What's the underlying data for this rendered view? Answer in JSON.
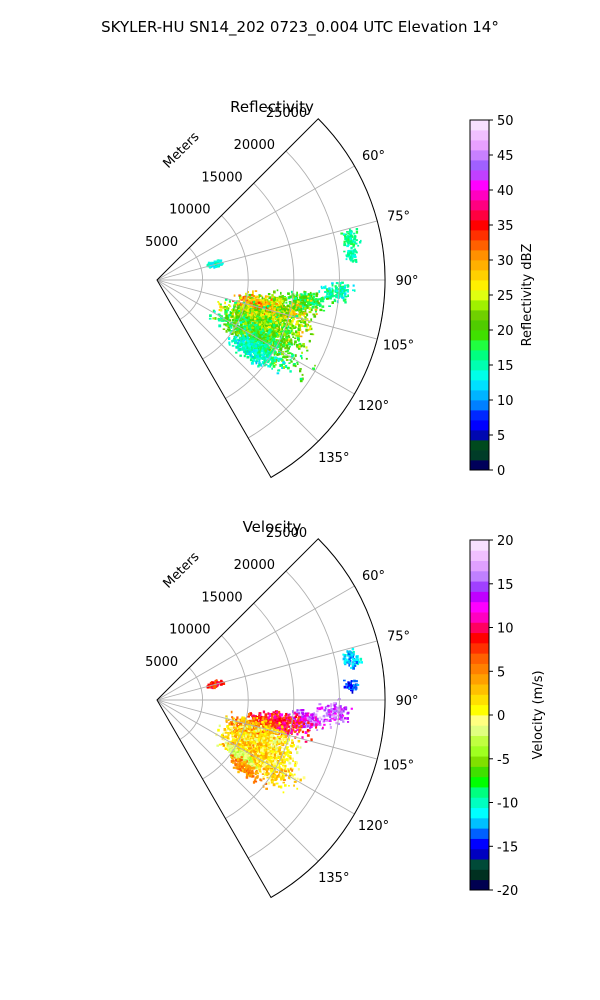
{
  "figure": {
    "suptitle": "SKYLER-HU  SN14_202  0723_0.004 UTC Elevation 14°"
  },
  "chart_data": [
    {
      "type": "heatmap",
      "projection": "polar-sector",
      "title": "Reflectivity",
      "range_label": "Meters",
      "range_ticks": [
        5000,
        10000,
        15000,
        20000,
        25000
      ],
      "range_max": 25000,
      "azimuth_span": [
        45,
        150
      ],
      "azimuth_ticks": [
        60,
        75,
        90,
        105,
        120,
        135
      ],
      "azimuth_tick_labels": [
        "60°",
        "75°",
        "90°",
        "105°",
        "120°",
        "135°"
      ],
      "grid": true,
      "colorbar": {
        "label": "Reflectivity dBZ",
        "min": 0,
        "max": 50,
        "ticks": [
          0,
          5,
          10,
          15,
          20,
          25,
          30,
          35,
          40,
          45,
          50
        ],
        "colormap": "NWSRef"
      },
      "echoes": [
        {
          "az": 75,
          "r": 6500,
          "da": 2.5,
          "dr": 900,
          "val": 14,
          "spread": 2,
          "density": 0.7
        },
        {
          "az": 78,
          "r": 21800,
          "da": 2.5,
          "dr": 800,
          "val": 16,
          "spread": 2,
          "density": 0.6
        },
        {
          "az": 83,
          "r": 21500,
          "da": 1.5,
          "dr": 600,
          "val": 15,
          "spread": 2,
          "density": 0.5
        },
        {
          "az": 94,
          "r": 19800,
          "da": 3,
          "dr": 1500,
          "val": 15,
          "spread": 3,
          "density": 0.55
        },
        {
          "az": 98,
          "r": 16500,
          "da": 3,
          "dr": 2200,
          "val": 18,
          "spread": 3,
          "density": 0.7
        },
        {
          "az": 104,
          "r": 13500,
          "da": 6,
          "dr": 3500,
          "val": 24,
          "spread": 6,
          "density": 0.9
        },
        {
          "az": 106,
          "r": 11500,
          "da": 5,
          "dr": 2000,
          "val": 30,
          "spread": 4,
          "density": 0.85
        },
        {
          "az": 112,
          "r": 12500,
          "da": 7,
          "dr": 4000,
          "val": 22,
          "spread": 6,
          "density": 0.85
        },
        {
          "az": 120,
          "r": 13000,
          "da": 6,
          "dr": 4500,
          "val": 19,
          "spread": 5,
          "density": 0.75
        },
        {
          "az": 125,
          "r": 13500,
          "da": 4,
          "dr": 2500,
          "val": 15,
          "spread": 3,
          "density": 0.55
        },
        {
          "az": 128,
          "r": 12500,
          "da": 3,
          "dr": 2000,
          "val": 14,
          "spread": 3,
          "density": 0.5
        }
      ]
    },
    {
      "type": "heatmap",
      "projection": "polar-sector",
      "title": "Velocity",
      "range_label": "Meters",
      "range_ticks": [
        5000,
        10000,
        15000,
        20000,
        25000
      ],
      "range_max": 25000,
      "azimuth_span": [
        45,
        150
      ],
      "azimuth_ticks": [
        60,
        75,
        90,
        105,
        120,
        135
      ],
      "azimuth_tick_labels": [
        "60°",
        "75°",
        "90°",
        "105°",
        "120°",
        "135°"
      ],
      "grid": true,
      "colorbar": {
        "label": "Velocity (m/s)",
        "min": -20,
        "max": 20,
        "ticks": [
          -20,
          -15,
          -10,
          -5,
          0,
          5,
          10,
          15,
          20
        ],
        "colormap": "NWSVel"
      },
      "echoes": [
        {
          "az": 75,
          "r": 6500,
          "da": 2.5,
          "dr": 900,
          "val": 8,
          "spread": 2,
          "density": 0.7
        },
        {
          "az": 78,
          "r": 21800,
          "da": 2.5,
          "dr": 800,
          "val": -12,
          "spread": 2,
          "density": 0.5
        },
        {
          "az": 86,
          "r": 21500,
          "da": 1.5,
          "dr": 600,
          "val": -14,
          "spread": 2,
          "density": 0.5
        },
        {
          "az": 94,
          "r": 19500,
          "da": 3,
          "dr": 1500,
          "val": 15,
          "spread": 3,
          "density": 0.55
        },
        {
          "az": 98,
          "r": 16500,
          "da": 3,
          "dr": 2000,
          "val": 14,
          "spread": 3,
          "density": 0.65
        },
        {
          "az": 101,
          "r": 13500,
          "da": 4,
          "dr": 3000,
          "val": 9,
          "spread": 3,
          "density": 0.85
        },
        {
          "az": 107,
          "r": 11500,
          "da": 6,
          "dr": 2500,
          "val": 4,
          "spread": 4,
          "density": 0.85
        },
        {
          "az": 113,
          "r": 12500,
          "da": 7,
          "dr": 3500,
          "val": 1,
          "spread": 3,
          "density": 0.85
        },
        {
          "az": 120,
          "r": 13000,
          "da": 5,
          "dr": 4000,
          "val": 2,
          "spread": 3,
          "density": 0.75
        },
        {
          "az": 124,
          "r": 11000,
          "da": 3,
          "dr": 1800,
          "val": -2,
          "spread": 2,
          "density": 0.7
        },
        {
          "az": 128,
          "r": 12500,
          "da": 3,
          "dr": 2000,
          "val": 5,
          "spread": 2,
          "density": 0.5
        }
      ]
    }
  ]
}
